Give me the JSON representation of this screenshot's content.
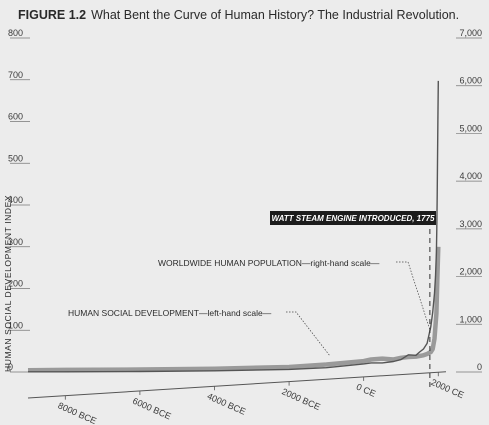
{
  "figure": {
    "label": "FIGURE 1.2",
    "title": "What Bent the Curve of Human History? The Industrial Revolution."
  },
  "chart_data": {
    "type": "line",
    "title": "What Bent the Curve of Human History? The Industrial Revolution.",
    "xlabel": "",
    "ylabel": "HUMAN SOCIAL DEVELOPMENT INDEX",
    "xlim": [
      -9000,
      2100
    ],
    "x_ticks": [
      {
        "value": -8000,
        "label": "8000 BCE"
      },
      {
        "value": -6000,
        "label": "6000 BCE"
      },
      {
        "value": -4000,
        "label": "4000 BCE"
      },
      {
        "value": -2000,
        "label": "2000 BCE"
      },
      {
        "value": 0,
        "label": "0 CE"
      },
      {
        "value": 2000,
        "label": "2000 CE"
      }
    ],
    "y_left": {
      "title": "HUMAN SOCIAL DEVELOPMENT INDEX",
      "ylim": [
        0,
        800
      ],
      "ticks": [
        {
          "value": 0,
          "label": "0"
        },
        {
          "value": 100,
          "label": "100"
        },
        {
          "value": 200,
          "label": "200"
        },
        {
          "value": 300,
          "label": "300"
        },
        {
          "value": 400,
          "label": "400"
        },
        {
          "value": 500,
          "label": "500"
        },
        {
          "value": 600,
          "label": "600"
        },
        {
          "value": 700,
          "label": "700"
        },
        {
          "value": 800,
          "label": "800"
        }
      ]
    },
    "y_right": {
      "ylim": [
        0,
        7000
      ],
      "ticks": [
        {
          "value": 0,
          "label": "0"
        },
        {
          "value": 1000,
          "label": "1,000"
        },
        {
          "value": 2000,
          "label": "2,000"
        },
        {
          "value": 3000,
          "label": "3,000"
        },
        {
          "value": 4000,
          "label": "4,000"
        },
        {
          "value": 5000,
          "label": "5,000"
        },
        {
          "value": 6000,
          "label": "6,000"
        },
        {
          "value": 7000,
          "label": "7,000"
        }
      ]
    },
    "series": [
      {
        "name": "HUMAN SOCIAL DEVELOPMENT",
        "axis": "left",
        "color": "#9a9a9a",
        "x": [
          -9000,
          -8000,
          -6000,
          -4000,
          -2000,
          -1000,
          0,
          200,
          500,
          800,
          1000,
          1200,
          1400,
          1600,
          1700,
          1800,
          1850,
          1900,
          1950,
          1975,
          2000
        ],
        "y": [
          4,
          5,
          6,
          8,
          12,
          18,
          26,
          30,
          32,
          30,
          34,
          36,
          37,
          40,
          43,
          48,
          55,
          80,
          140,
          220,
          300
        ]
      },
      {
        "name": "WORLDWIDE HUMAN POPULATION",
        "axis": "right",
        "color": "#555555",
        "x": [
          -9000,
          -8000,
          -6000,
          -4000,
          -2000,
          -1000,
          0,
          200,
          500,
          800,
          1000,
          1200,
          1400,
          1500,
          1600,
          1700,
          1800,
          1850,
          1900,
          1927,
          1950,
          1960,
          1970,
          1980,
          1990,
          2000
        ],
        "y": [
          4,
          5,
          10,
          25,
          55,
          90,
          170,
          190,
          190,
          220,
          260,
          360,
          350,
          420,
          480,
          600,
          950,
          1250,
          1650,
          2000,
          2500,
          3000,
          3700,
          4400,
          5300,
          6100
        ]
      }
    ],
    "annotations": {
      "callout": "WATT STEAM ENGINE INTRODUCED, 1775",
      "callout_year": 1775,
      "population_label": "WORLDWIDE HUMAN POPULATION—right-hand scale—",
      "social_label": "HUMAN SOCIAL DEVELOPMENT—left-hand scale—"
    },
    "grid": false
  }
}
